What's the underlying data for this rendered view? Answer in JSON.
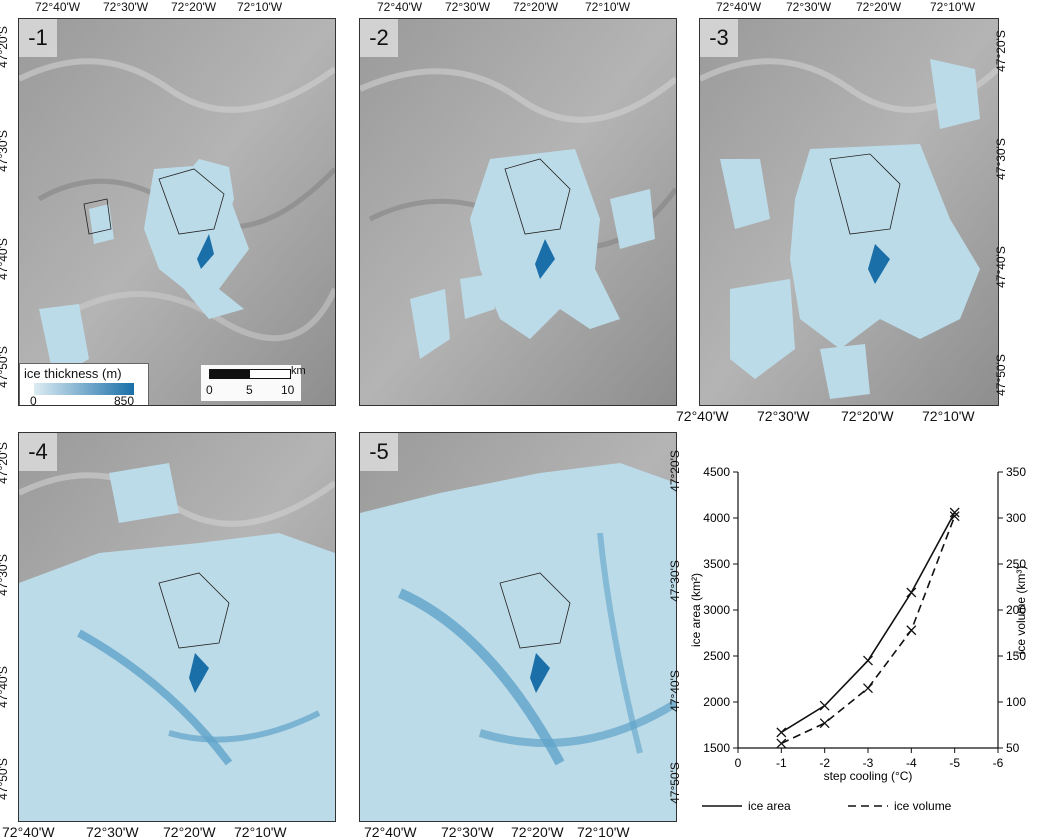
{
  "panels": [
    {
      "label": "-1"
    },
    {
      "label": "-2"
    },
    {
      "label": "-3"
    },
    {
      "label": "-4"
    },
    {
      "label": "-5"
    }
  ],
  "lon_ticks": [
    "72°40'W",
    "72°30'W",
    "72°20'W",
    "72°10'W"
  ],
  "lat_ticks": [
    "47°20'S",
    "47°30'S",
    "47°40'S",
    "47°50'S"
  ],
  "thickness_legend": {
    "title": "ice thickness (m)",
    "min": "0",
    "max": "850"
  },
  "scalebar": {
    "unit": "km",
    "labels": [
      "0",
      "5",
      "10"
    ]
  },
  "colors": {
    "ice_light": "#bcdbe8",
    "ice_dark": "#1a6fa8",
    "hillshade": "#a6a6a6",
    "outline": "#222222"
  },
  "chart_data": {
    "type": "line",
    "xlabel": "step cooling (°C)",
    "ylabel": "ice area (km²)",
    "y2label": "ice volume (km³)",
    "x": [
      -1,
      -2,
      -3,
      -4,
      -5
    ],
    "xticks": [
      "0",
      "-1",
      "-2",
      "-3",
      "-4",
      "-5",
      "-6"
    ],
    "xlim": [
      0,
      -6
    ],
    "ylim": [
      1500,
      4500
    ],
    "yticks": [
      "1500",
      "2000",
      "2500",
      "3000",
      "3500",
      "4000",
      "4500"
    ],
    "y2lim": [
      50,
      350
    ],
    "y2ticks": [
      "50",
      "100",
      "150",
      "200",
      "250",
      "300",
      "350"
    ],
    "series": [
      {
        "name": "ice area",
        "axis": "left",
        "values": [
          1670,
          1960,
          2450,
          3190,
          4060
        ]
      },
      {
        "name": "ice volume",
        "axis": "right",
        "values": [
          55,
          77,
          115,
          178,
          302
        ]
      }
    ],
    "legend": "bottom"
  }
}
